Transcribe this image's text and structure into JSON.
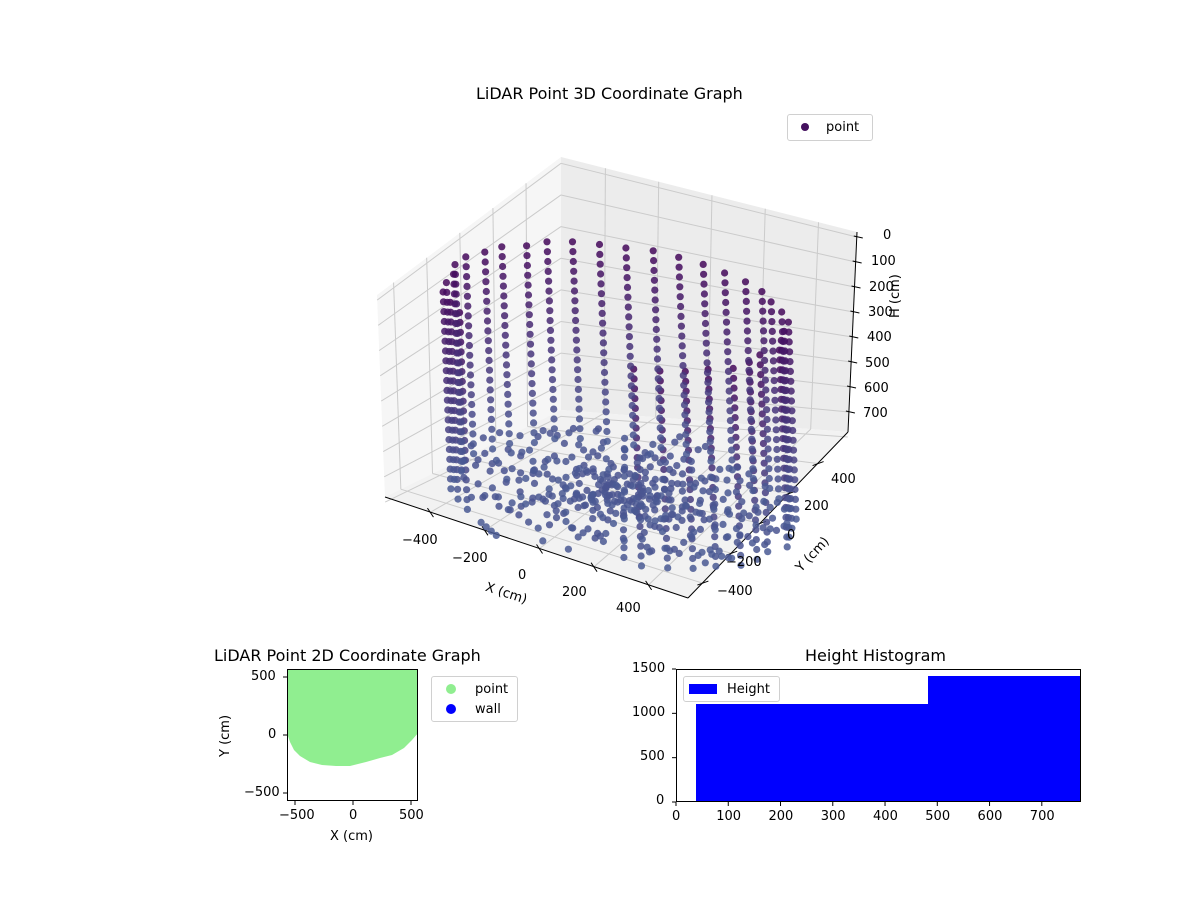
{
  "figure": {
    "background": "#ffffff"
  },
  "chart_data": [
    {
      "type": "scatter",
      "subtype": "3d",
      "title": "LiDAR Point 3D Coordinate Graph",
      "xlabel": "X (cm)",
      "ylabel": "Y (cm)",
      "zlabel": "H (cm)",
      "x_ticks": [
        "−400",
        "−200",
        "0",
        "200",
        "400"
      ],
      "y_ticks": [
        "−400",
        "−200",
        "0",
        "200",
        "400"
      ],
      "z_ticks": [
        "0",
        "100",
        "200",
        "300",
        "400",
        "500",
        "600",
        "700"
      ],
      "z_inverted": true,
      "xlim": [
        -550,
        550
      ],
      "ylim": [
        -550,
        550
      ],
      "zlim": [
        0,
        780
      ],
      "legend": [
        {
          "label": "point",
          "color": "#44115f",
          "marker": "circle"
        }
      ],
      "legend_position": "upper right",
      "colormap": "viridis (dark purple to slate blue by height)",
      "description": "Dense cylindrical/bowl-shaped point cloud of a room scan: vertical wall columns from H≈0 to H≈780 around the perimeter, floor points converging near H≈780; a few outlier points near X≈-200,Y≈-500 and X≈450,Y≈-150 at floor level.",
      "grid": true
    },
    {
      "type": "scatter",
      "title": "LiDAR Point 2D Coordinate Graph",
      "xlabel": "X (cm)",
      "ylabel": "Y (cm)",
      "x_ticks": [
        "−500",
        "0",
        "500"
      ],
      "y_ticks": [
        "−500",
        "0",
        "500"
      ],
      "xlim": [
        -560,
        560
      ],
      "ylim": [
        -560,
        560
      ],
      "series": [
        {
          "name": "point",
          "color": "#90ee90",
          "description": "Filled region covering upper area; bottom boundary dips to Y≈-260 at X≈0, near Y≈0 at X=±550"
        },
        {
          "name": "wall",
          "color": "#0000ff",
          "description": "no visible points"
        }
      ],
      "legend_position": "outside right",
      "grid": false
    },
    {
      "type": "bar",
      "subtype": "histogram",
      "title": "Height Histogram",
      "xlabel": "",
      "ylabel": "",
      "bins": [
        [
          36,
          480
        ],
        [
          480,
          775
        ]
      ],
      "values": [
        1120,
        1430
      ],
      "x_ticks": [
        "0",
        "100",
        "200",
        "300",
        "400",
        "500",
        "600",
        "700"
      ],
      "y_ticks": [
        "0",
        "500",
        "1000",
        "1500"
      ],
      "xlim": [
        0,
        775
      ],
      "ylim": [
        0,
        1500
      ],
      "legend": [
        {
          "label": "Height",
          "color": "#0000ff"
        }
      ],
      "legend_position": "upper left",
      "grid": false
    }
  ],
  "labels": {
    "title3d": "LiDAR Point 3D Coordinate Graph",
    "legend3d": "point",
    "xlabel3d": "X (cm)",
    "ylabel3d": "Y (cm)",
    "zlabel3d": "H (cm)",
    "title2d": "LiDAR Point 2D Coordinate Graph",
    "xlabel2d": "X (cm)",
    "ylabel2d": "Y (cm)",
    "legend2d_point": "point",
    "legend2d_wall": "wall",
    "titleHist": "Height Histogram",
    "legendHist": "Height"
  },
  "ticks3d": {
    "x": [
      "−400",
      "−200",
      "0",
      "200",
      "400"
    ],
    "y": [
      "−400",
      "−200",
      "0",
      "200",
      "400"
    ],
    "z": [
      "0",
      "100",
      "200",
      "300",
      "400",
      "500",
      "600",
      "700"
    ]
  },
  "ticks2d": {
    "x": [
      "−500",
      "0",
      "500"
    ],
    "y": [
      "500",
      "0",
      "−500"
    ]
  },
  "ticksHist": {
    "x": [
      "0",
      "100",
      "200",
      "300",
      "400",
      "500",
      "600",
      "700"
    ],
    "y": [
      "1500",
      "1000",
      "500",
      "0"
    ]
  },
  "colors": {
    "point3d_top": "#44065a",
    "point3d_bottom": "#4a5a94",
    "point2d": "#90ee90",
    "wall": "#0000ff",
    "hist": "#0000ff",
    "pane_left": "#f6f6f6",
    "pane_right": "#eeeeee",
    "pane_floor": "#f2f2f2",
    "grid": "#cccccc"
  }
}
